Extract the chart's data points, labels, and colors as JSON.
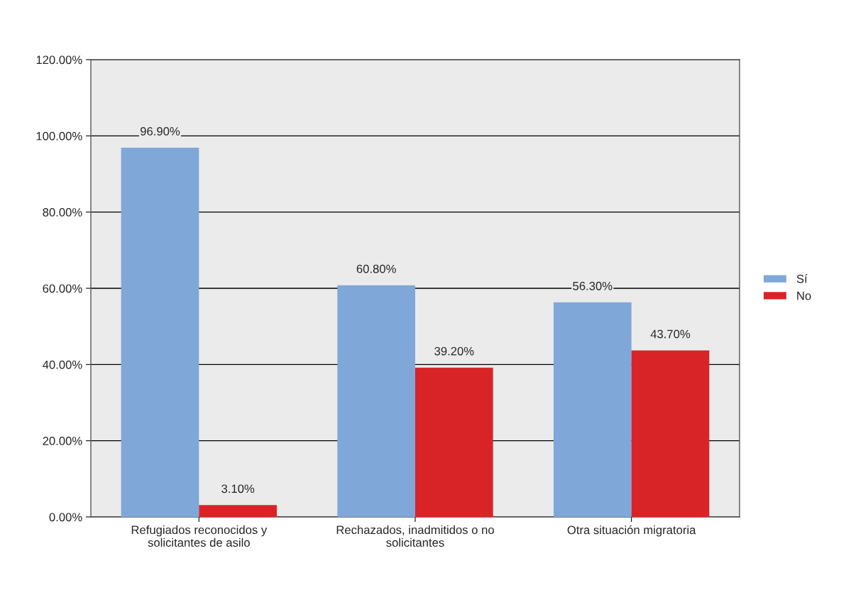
{
  "chart_data": {
    "type": "bar",
    "categories": [
      "Refugiados reconocidos y\nsolicitantes de asilo",
      "Rechazados, inadmitidos o no\nsolicitantes",
      "Otra situación migratoria"
    ],
    "series": [
      {
        "name": "Sí",
        "color": "#7fa8d9",
        "values": [
          96.9,
          60.8,
          56.3
        ],
        "value_labels": [
          "96.90%",
          "60.80%",
          "56.30%"
        ]
      },
      {
        "name": "No",
        "color": "#d92427",
        "values": [
          3.1,
          39.2,
          43.7
        ],
        "value_labels": [
          "3.10%",
          "39.20%",
          "43.70%"
        ]
      }
    ],
    "ylim": [
      0,
      120
    ],
    "yticks": [
      {
        "value": 0,
        "label": "0.00%"
      },
      {
        "value": 20,
        "label": "20.00%"
      },
      {
        "value": 40,
        "label": "40.00%"
      },
      {
        "value": 60,
        "label": "60.00%"
      },
      {
        "value": 80,
        "label": "80.00%"
      },
      {
        "value": 100,
        "label": "100.00%"
      },
      {
        "value": 120,
        "label": "120.00%"
      }
    ],
    "grid": "y",
    "legend": "right"
  }
}
